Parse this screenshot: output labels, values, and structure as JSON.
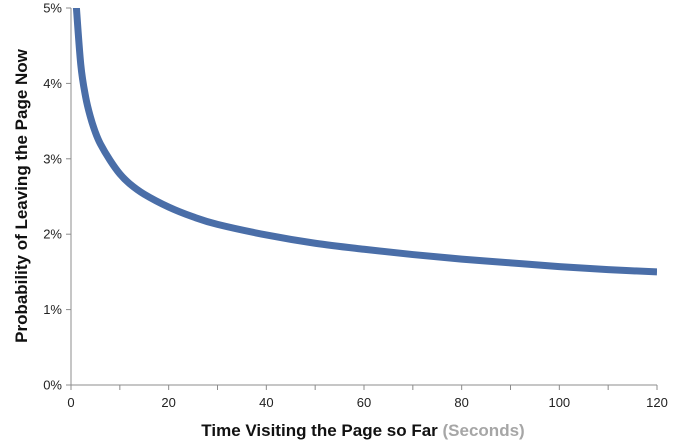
{
  "colors": {
    "line": "#4a6ea8",
    "axis": "#8c8c8c",
    "muted_label": "#a6a6a6"
  },
  "chart_data": {
    "type": "line",
    "title": "",
    "xlabel": "Time Visiting the Page so Far",
    "xlabel_unit": "(Seconds)",
    "ylabel": "Probability of Leaving the Page Now",
    "xlim": [
      0,
      120
    ],
    "ylim": [
      0,
      5
    ],
    "x_ticks": [
      "0",
      "20",
      "40",
      "60",
      "80",
      "100",
      "120"
    ],
    "y_ticks": [
      "0%",
      "1%",
      "2%",
      "3%",
      "4%",
      "5%"
    ],
    "grid": false,
    "legend": "none",
    "series": [
      {
        "x": [
          1,
          2,
          3,
          4,
          5,
          6,
          8,
          10,
          12,
          15,
          20,
          25,
          30,
          40,
          50,
          60,
          70,
          80,
          90,
          100,
          110,
          120
        ],
        "values": [
          5.1,
          4.25,
          3.82,
          3.55,
          3.35,
          3.2,
          2.98,
          2.8,
          2.67,
          2.53,
          2.36,
          2.23,
          2.13,
          1.99,
          1.88,
          1.8,
          1.73,
          1.67,
          1.62,
          1.57,
          1.53,
          1.5
        ]
      }
    ]
  }
}
